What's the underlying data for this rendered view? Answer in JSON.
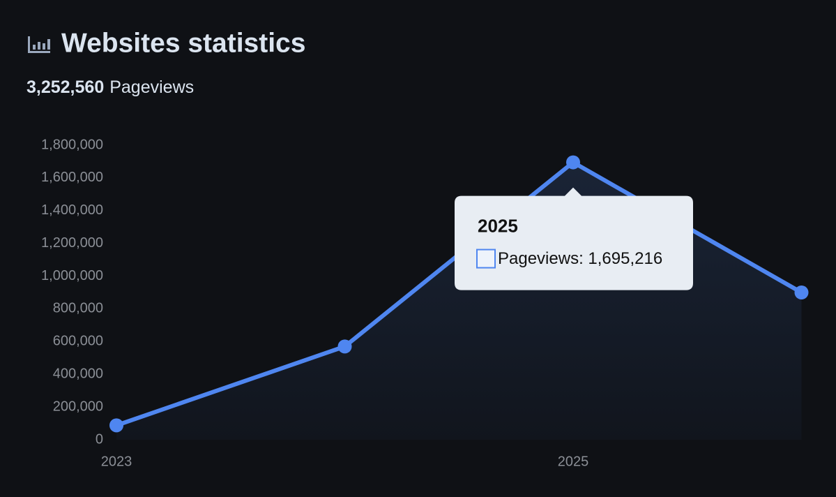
{
  "header": {
    "title": "Websites statistics",
    "total": "3,252,560",
    "total_label": "Pageviews"
  },
  "chart_data": {
    "type": "line",
    "categories": [
      "2023",
      null,
      "2025",
      null
    ],
    "series": [
      {
        "name": "Pageviews",
        "color": "#4f86f0",
        "values": [
          88000,
          570000,
          1695216,
          900000
        ]
      }
    ],
    "ylim": [
      0,
      1800000
    ],
    "yticks": [
      0,
      {
        "value": 200000,
        "label": "200,000"
      },
      {
        "value": 400000,
        "label": "400,000"
      },
      {
        "value": 600000,
        "label": "600,000"
      },
      {
        "value": 800000,
        "label": "800,000"
      },
      {
        "value": 1000000,
        "label": "1,000,000"
      },
      {
        "value": 1200000,
        "label": "1,200,000"
      },
      {
        "value": 1400000,
        "label": "1,400,000"
      },
      {
        "value": 1600000,
        "label": "1,600,000"
      },
      {
        "value": 1800000,
        "label": "1,800,000"
      }
    ],
    "grid": false,
    "tooltip": {
      "index": 2,
      "label": "Pageviews: 1,695,216"
    }
  }
}
